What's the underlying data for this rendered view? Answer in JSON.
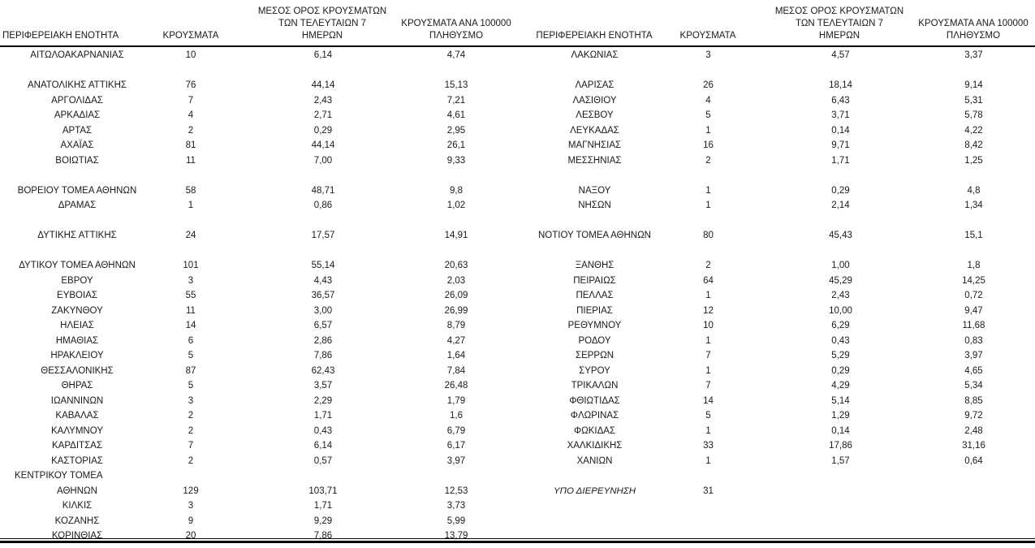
{
  "colors": {
    "background": "#ffffff",
    "text": "#1a1a1a",
    "rule": "#000000"
  },
  "table": {
    "headers": {
      "region": "ΠΕΡΙΦΕΡΕΙΑΚΗ ΕΝΟΤΗΤΑ",
      "cases": "ΚΡΟΥΣΜΑΤΑ",
      "avg7_line1": "ΜΕΣΟΣ ΟΡΟΣ ΚΡΟΥΣΜΑΤΩΝ",
      "avg7_line2": "ΤΩΝ ΤΕΛΕΥΤΑΙΩΝ 7",
      "avg7_line3": "ΗΜΕΡΩΝ",
      "per100k_line1": "ΚΡΟΥΣΜΑΤΑ ΑΝΑ 100000",
      "per100k_line2": "ΠΛΗΘΥΣΜΟ"
    },
    "rows": [
      {
        "left": {
          "region": "ΑΙΤΩΛΟΑΚΑΡΝΑΝΙΑΣ",
          "cases": "10",
          "avg7": "6,14",
          "per100k": "4,74"
        },
        "right": {
          "region": "ΛΑΚΩΝΙΑΣ",
          "cases": "3",
          "avg7": "4,57",
          "per100k": "3,37"
        }
      },
      {
        "left": null,
        "right": null
      },
      {
        "left": {
          "region": "ΑΝΑΤΟΛΙΚΗΣ ΑΤΤΙΚΗΣ",
          "cases": "76",
          "avg7": "44,14",
          "per100k": "15,13"
        },
        "right": {
          "region": "ΛΑΡΙΣΑΣ",
          "cases": "26",
          "avg7": "18,14",
          "per100k": "9,14"
        }
      },
      {
        "left": {
          "region": "ΑΡΓΟΛΙΔΑΣ",
          "cases": "7",
          "avg7": "2,43",
          "per100k": "7,21"
        },
        "right": {
          "region": "ΛΑΣΙΘΙΟΥ",
          "cases": "4",
          "avg7": "6,43",
          "per100k": "5,31"
        }
      },
      {
        "left": {
          "region": "ΑΡΚΑΔΙΑΣ",
          "cases": "4",
          "avg7": "2,71",
          "per100k": "4,61"
        },
        "right": {
          "region": "ΛΕΣΒΟΥ",
          "cases": "5",
          "avg7": "3,71",
          "per100k": "5,78"
        }
      },
      {
        "left": {
          "region": "ΑΡΤΑΣ",
          "cases": "2",
          "avg7": "0,29",
          "per100k": "2,95"
        },
        "right": {
          "region": "ΛΕΥΚΑΔΑΣ",
          "cases": "1",
          "avg7": "0,14",
          "per100k": "4,22"
        }
      },
      {
        "left": {
          "region": "ΑΧΑΪΑΣ",
          "cases": "81",
          "avg7": "44,14",
          "per100k": "26,1"
        },
        "right": {
          "region": "ΜΑΓΝΗΣΙΑΣ",
          "cases": "16",
          "avg7": "9,71",
          "per100k": "8,42"
        }
      },
      {
        "left": {
          "region": "ΒΟΙΩΤΙΑΣ",
          "cases": "11",
          "avg7": "7,00",
          "per100k": "9,33"
        },
        "right": {
          "region": "ΜΕΣΣΗΝΙΑΣ",
          "cases": "2",
          "avg7": "1,71",
          "per100k": "1,25"
        }
      },
      {
        "left": null,
        "right": null
      },
      {
        "left": {
          "region": "ΒΟΡΕΙΟΥ ΤΟΜΕΑ ΑΘΗΝΩΝ",
          "cases": "58",
          "avg7": "48,71",
          "per100k": "9,8"
        },
        "right": {
          "region": "ΝΑΞΟΥ",
          "cases": "1",
          "avg7": "0,29",
          "per100k": "4,8"
        }
      },
      {
        "left": {
          "region": "ΔΡΑΜΑΣ",
          "cases": "1",
          "avg7": "0,86",
          "per100k": "1,02"
        },
        "right": {
          "region": "ΝΗΣΩΝ",
          "cases": "1",
          "avg7": "2,14",
          "per100k": "1,34"
        }
      },
      {
        "left": null,
        "right": null
      },
      {
        "left": {
          "region": "ΔΥΤΙΚΗΣ ΑΤΤΙΚΗΣ",
          "cases": "24",
          "avg7": "17,57",
          "per100k": "14,91"
        },
        "right": {
          "region": "ΝΟΤΙΟΥ ΤΟΜΕΑ ΑΘΗΝΩΝ",
          "cases": "80",
          "avg7": "45,43",
          "per100k": "15,1"
        }
      },
      {
        "left": null,
        "right": null
      },
      {
        "left": {
          "region": "ΔΥΤΙΚΟΥ ΤΟΜΕΑ ΑΘΗΝΩΝ",
          "cases": "101",
          "avg7": "55,14",
          "per100k": "20,63"
        },
        "right": {
          "region": "ΞΑΝΘΗΣ",
          "cases": "2",
          "avg7": "1,00",
          "per100k": "1,8"
        }
      },
      {
        "left": {
          "region": "ΕΒΡΟΥ",
          "cases": "3",
          "avg7": "4,43",
          "per100k": "2,03"
        },
        "right": {
          "region": "ΠΕΙΡΑΙΩΣ",
          "cases": "64",
          "avg7": "45,29",
          "per100k": "14,25"
        }
      },
      {
        "left": {
          "region": "ΕΥΒΟΙΑΣ",
          "cases": "55",
          "avg7": "36,57",
          "per100k": "26,09"
        },
        "right": {
          "region": "ΠΕΛΛΑΣ",
          "cases": "1",
          "avg7": "2,43",
          "per100k": "0,72"
        }
      },
      {
        "left": {
          "region": "ΖΑΚΥΝΘΟΥ",
          "cases": "11",
          "avg7": "3,00",
          "per100k": "26,99"
        },
        "right": {
          "region": "ΠΙΕΡΙΑΣ",
          "cases": "12",
          "avg7": "10,00",
          "per100k": "9,47"
        }
      },
      {
        "left": {
          "region": "ΗΛΕΙΑΣ",
          "cases": "14",
          "avg7": "6,57",
          "per100k": "8,79"
        },
        "right": {
          "region": "ΡΕΘΥΜΝΟΥ",
          "cases": "10",
          "avg7": "6,29",
          "per100k": "11,68"
        }
      },
      {
        "left": {
          "region": "ΗΜΑΘΙΑΣ",
          "cases": "6",
          "avg7": "2,86",
          "per100k": "4,27"
        },
        "right": {
          "region": "ΡΟΔΟΥ",
          "cases": "1",
          "avg7": "0,43",
          "per100k": "0,83"
        }
      },
      {
        "left": {
          "region": "ΗΡΑΚΛΕΙΟΥ",
          "cases": "5",
          "avg7": "7,86",
          "per100k": "1,64"
        },
        "right": {
          "region": "ΣΕΡΡΩΝ",
          "cases": "7",
          "avg7": "5,29",
          "per100k": "3,97"
        }
      },
      {
        "left": {
          "region": "ΘΕΣΣΑΛΟΝΙΚΗΣ",
          "cases": "87",
          "avg7": "62,43",
          "per100k": "7,84"
        },
        "right": {
          "region": "ΣΥΡΟΥ",
          "cases": "1",
          "avg7": "0,29",
          "per100k": "4,65"
        }
      },
      {
        "left": {
          "region": "ΘΗΡΑΣ",
          "cases": "5",
          "avg7": "3,57",
          "per100k": "26,48"
        },
        "right": {
          "region": "ΤΡΙΚΑΛΩΝ",
          "cases": "7",
          "avg7": "4,29",
          "per100k": "5,34"
        }
      },
      {
        "left": {
          "region": "ΙΩΑΝΝΙΝΩΝ",
          "cases": "3",
          "avg7": "2,29",
          "per100k": "1,79"
        },
        "right": {
          "region": "ΦΘΙΩΤΙΔΑΣ",
          "cases": "14",
          "avg7": "5,14",
          "per100k": "8,85"
        }
      },
      {
        "left": {
          "region": "ΚΑΒΑΛΑΣ",
          "cases": "2",
          "avg7": "1,71",
          "per100k": "1,6"
        },
        "right": {
          "region": "ΦΛΩΡΙΝΑΣ",
          "cases": "5",
          "avg7": "1,29",
          "per100k": "9,72"
        }
      },
      {
        "left": {
          "region": "ΚΑΛΥΜΝΟΥ",
          "cases": "2",
          "avg7": "0,43",
          "per100k": "6,79"
        },
        "right": {
          "region": "ΦΩΚΙΔΑΣ",
          "cases": "1",
          "avg7": "0,14",
          "per100k": "2,48"
        }
      },
      {
        "left": {
          "region": "ΚΑΡΔΙΤΣΑΣ",
          "cases": "7",
          "avg7": "6,14",
          "per100k": "6,17"
        },
        "right": {
          "region": "ΧΑΛΚΙΔΙΚΗΣ",
          "cases": "33",
          "avg7": "17,86",
          "per100k": "31,16"
        }
      },
      {
        "left": {
          "region": "ΚΑΣΤΟΡΙΑΣ",
          "cases": "2",
          "avg7": "0,57",
          "per100k": "3,97"
        },
        "right": {
          "region": "ΧΑΝΙΩΝ",
          "cases": "1",
          "avg7": "1,57",
          "per100k": "0,64"
        }
      },
      {
        "left": {
          "region": "ΚΕΝΤΡΙΚΟΥ ΤΟΜΕΑ",
          "cases": "",
          "avg7": "",
          "per100k": "",
          "align": "left"
        },
        "right": null
      },
      {
        "left": {
          "region": "ΑΘΗΝΩΝ",
          "cases": "129",
          "avg7": "103,71",
          "per100k": "12,53"
        },
        "right": {
          "region": "ΥΠΟ ΔΙΕΡΕΥΝΗΣΗ",
          "cases": "31",
          "avg7": "",
          "per100k": "",
          "italic": true
        }
      },
      {
        "left": {
          "region": "ΚΙΛΚΙΣ",
          "cases": "3",
          "avg7": "1,71",
          "per100k": "3,73"
        },
        "right": null
      },
      {
        "left": {
          "region": "ΚΟΖΑΝΗΣ",
          "cases": "9",
          "avg7": "9,29",
          "per100k": "5,99"
        },
        "right": null
      },
      {
        "left": {
          "region": "ΚΟΡΙΝΘΙΑΣ",
          "cases": "20",
          "avg7": "7,86",
          "per100k": "13,79"
        },
        "right": null
      }
    ]
  }
}
